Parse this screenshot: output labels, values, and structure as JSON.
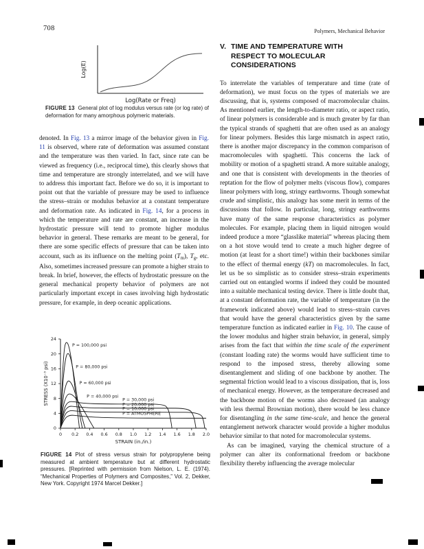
{
  "page": {
    "number": "708",
    "running_head": "Polymers, Mechanical Behavior"
  },
  "section": {
    "number": "V.",
    "title": "TIME AND TEMPERATURE WITH RESPECT TO MOLECULAR CONSIDERATIONS"
  },
  "figure13": {
    "caption_label": "FIGURE 13",
    "caption_text": "General plot of log modulus versus rate (or log rate) of deformation for many amorphous polymeric materials.",
    "ylabel": "Log(E)",
    "xlabel": "Log(Rate or Freq)"
  },
  "figure14": {
    "caption_label": "FIGURE 14",
    "caption_text": "Plot of stress versus strain for polypropylene being measured at ambient temperature but at different hydrostatic pressures. [Reprinted with permission from Nielson, L. E. (1974). “Mechanical Properties of Polymers and Composites,” Vol. 2, Dekker, New York. Copyright 1974 Marcel Dekker.]"
  },
  "left_column": {
    "paragraph": [
      {
        "s": "p",
        "t": "denoted. In "
      },
      {
        "s": "link",
        "t": "Fig. 13"
      },
      {
        "s": "p",
        "t": " a mirror image of the behavior given in "
      },
      {
        "s": "link",
        "t": "Fig. 11"
      },
      {
        "s": "p",
        "t": " is observed, where rate of deformation was assumed constant and the temperature was then varied. In fact, since rate can be viewed as frequency (i.e., reciprocal time), this clearly shows that time and temperature are strongly interrelated, and we will have to address this important fact. Before we do so, it is important to point out that the variable of pressure may be used to influence the stress–strain or modulus behavior at a constant temperature and deformation rate. As indicated in "
      },
      {
        "s": "link",
        "t": "Fig. 14"
      },
      {
        "s": "p",
        "t": ", for a process in which the temperature and rate are constant, an increase in the hydrostatic pressure will tend to promote higher modulus behavior in general. These remarks are meant to be general, for there are some specific effects of pressure that can be taken into account, such as its influence on the melting point ("
      },
      {
        "s": "i",
        "t": "T"
      },
      {
        "s": "sub",
        "t": "m"
      },
      {
        "s": "p",
        "t": "), "
      },
      {
        "s": "i",
        "t": "T"
      },
      {
        "s": "sub",
        "t": "g"
      },
      {
        "s": "p",
        "t": ", etc. Also, sometimes increased pressure can promote a higher strain to break. In brief, however, the effects of hydrostatic pressure on the general mechanical property behavior of polymers are not particularly important except in cases involving high hydrostatic pressure, for example, in deep oceanic applications."
      }
    ]
  },
  "right_column": {
    "paragraph1": [
      {
        "s": "p",
        "t": "To interrelate the variables of temperature and time (rate of deformation), we must focus on the types of materials we are discussing, that is, systems composed of macromolecular chains. As mentioned earlier, the length-to-diameter ratio, or aspect ratio, of linear polymers is considerable and is much greater by far than the typical strands of spaghetti that are often used as an analogy for linear polymers. Besides this large mismatch in aspect ratio, there is another major discrepancy in the common comparison of macromolecules with spaghetti. This concerns the lack of mobility or motion of a spaghetti strand. A more suitable analogy, and one that is consistent with developments in the theories of reptation for the flow of polymer melts (viscous flow), compares linear polymers with long, stringy earthworms. Though somewhat crude and simplistic, this analogy has some merit in terms of the discussions that follow. In particular, long, stringy earthworms have many of the same response characteristics as polymer molecules. For example, placing them in liquid nitrogen would indeed produce a more “glasslike material” whereas placing them on a hot stove would tend to create a much higher degree of motion (at least for a short time!) within their backbones similar to the effect of thermal energy ("
      },
      {
        "s": "i",
        "t": "kT"
      },
      {
        "s": "p",
        "t": ") on macromolecules. In fact, let us be so simplistic as to consider stress–strain experiments carried out on entangled worms if indeed they could be mounted into a suitable mechanical testing device. There is little doubt that, at a constant deformation rate, the variable of temperature (in the framework indicated above) would lead to stress–strain curves that would have the general characteristics given by the same temperature function as indicated earlier in "
      },
      {
        "s": "link",
        "t": "Fig. 10"
      },
      {
        "s": "p",
        "t": ". The cause of the lower modulus and higher strain behavior, in general, simply arises from the fact that "
      },
      {
        "s": "i",
        "t": "within the time scale of the experiment"
      },
      {
        "s": "p",
        "t": " (constant loading rate) the worms would have sufficient time to respond to the imposed stress, thereby allowing some disentanglement and sliding of one backbone by another. The segmental friction would lead to a viscous dissipation, that is, loss of mechanical energy. However, as the temperature decreased and the backbone motion of the worms also decreased (an analogy with less thermal Brownian motion), there would be less chance for disentangling "
      },
      {
        "s": "i",
        "t": "in the same time-scale"
      },
      {
        "s": "p",
        "t": ", and hence the general entanglement network character would provide a higher modulus behavior similar to that noted for macromolecular systems."
      }
    ],
    "paragraph2": [
      {
        "s": "p",
        "t": "As can be imagined, varying the chemical structure of a polymer can alter its conformational freedom or backbone flexibility thereby influencing the average molecular"
      }
    ]
  },
  "chart_data": [
    {
      "id": "figure-13",
      "type": "line",
      "title": "",
      "xlabel": "Log(Rate or Freq)",
      "ylabel": "Log(E)",
      "xlim": [
        0,
        10
      ],
      "ylim": [
        0,
        8
      ],
      "grid": false,
      "x": [
        0,
        0.6,
        1.4,
        2.2,
        3.0,
        3.8,
        4.6,
        5.4,
        6.2,
        7.0,
        7.8,
        8.6,
        9.4,
        10
      ],
      "y": [
        0.25,
        0.7,
        1.0,
        1.15,
        1.3,
        1.55,
        2.1,
        3.1,
        4.4,
        5.6,
        6.4,
        6.85,
        7.0,
        7.05
      ],
      "note": "qualitative sigmoid: log modulus increases with log rate of deformation"
    },
    {
      "id": "figure-14",
      "type": "line",
      "title": "",
      "xlabel": "STRAIN (in./in.)",
      "ylabel": "STRESS (X10⁻³ psi)",
      "xlim": [
        0,
        2.0
      ],
      "ylim": [
        0,
        24
      ],
      "grid": false,
      "x_ticks": [
        0,
        0.2,
        0.4,
        0.6,
        0.8,
        1.0,
        1.2,
        1.4,
        1.6,
        1.8,
        2.0
      ],
      "y_ticks": [
        0,
        4,
        8,
        12,
        16,
        20,
        24
      ],
      "series": [
        {
          "name": "P = 100,000 psi",
          "label_pos": [
            0.16,
            22.0
          ],
          "points": [
            [
              0,
              0
            ],
            [
              0.02,
              12
            ],
            [
              0.05,
              21.5
            ],
            [
              0.08,
              23.5
            ],
            [
              0.12,
              22
            ],
            [
              0.17,
              16
            ],
            [
              0.22,
              7
            ],
            [
              0.26,
              0
            ]
          ]
        },
        {
          "name": "P = 80,000 psi",
          "label_pos": [
            0.21,
            16.2
          ],
          "points": [
            [
              0,
              0
            ],
            [
              0.02,
              9
            ],
            [
              0.06,
              18
            ],
            [
              0.1,
              20.7
            ],
            [
              0.15,
              18.5
            ],
            [
              0.21,
              11
            ],
            [
              0.27,
              3
            ],
            [
              0.3,
              0
            ]
          ]
        },
        {
          "name": "P = 60,000 psi",
          "label_pos": [
            0.26,
            11.8
          ],
          "points": [
            [
              0,
              0
            ],
            [
              0.03,
              8
            ],
            [
              0.08,
              12.2
            ],
            [
              0.12,
              13
            ],
            [
              0.18,
              11
            ],
            [
              0.26,
              5.5
            ],
            [
              0.33,
              0.5
            ],
            [
              0.34,
              0
            ]
          ]
        },
        {
          "name": "P = 40,000 psi",
          "label_pos": [
            0.36,
            8.2
          ],
          "points": [
            [
              0,
              0
            ],
            [
              0.03,
              5.5
            ],
            [
              0.08,
              8.8
            ],
            [
              0.13,
              9.4
            ],
            [
              0.2,
              8.4
            ],
            [
              0.3,
              5.5
            ],
            [
              0.4,
              2
            ],
            [
              0.46,
              0
            ]
          ]
        },
        {
          "name": "P = 30,000 psi",
          "label_pos": [
            0.85,
            7.3
          ],
          "points": [
            [
              0,
              0
            ],
            [
              0.04,
              5
            ],
            [
              0.1,
              7.1
            ],
            [
              0.17,
              7.2
            ],
            [
              0.3,
              6.7
            ],
            [
              0.6,
              6.5
            ],
            [
              1.0,
              6.5
            ],
            [
              1.4,
              6.5
            ],
            [
              1.48,
              5.5
            ],
            [
              1.52,
              1.5
            ],
            [
              1.53,
              0
            ]
          ]
        },
        {
          "name": "P = 20,000 psi",
          "label_pos": [
            0.85,
            6.0
          ],
          "points": [
            [
              0,
              0
            ],
            [
              0.04,
              4.2
            ],
            [
              0.11,
              6.0
            ],
            [
              0.2,
              5.8
            ],
            [
              0.4,
              5.45
            ],
            [
              0.8,
              5.4
            ],
            [
              1.4,
              5.4
            ],
            [
              1.76,
              5.35
            ],
            [
              1.83,
              3.5
            ],
            [
              1.86,
              0
            ]
          ]
        },
        {
          "name": "P = 10,000 psi",
          "label_pos": [
            0.85,
            4.9
          ],
          "points": [
            [
              0,
              0
            ],
            [
              0.05,
              3.6
            ],
            [
              0.12,
              4.8
            ],
            [
              0.22,
              4.6
            ],
            [
              0.45,
              4.35
            ],
            [
              0.9,
              4.3
            ],
            [
              1.5,
              4.3
            ],
            [
              1.93,
              4.25
            ],
            [
              1.97,
              1.5
            ],
            [
              1.98,
              0
            ]
          ]
        },
        {
          "name": "P = ATMOSPHERE",
          "label_pos": [
            0.85,
            3.6
          ],
          "points": [
            [
              0,
              0
            ],
            [
              0.05,
              2.6
            ],
            [
              0.13,
              3.6
            ],
            [
              0.25,
              3.3
            ],
            [
              0.5,
              2.9
            ],
            [
              0.9,
              2.75
            ],
            [
              1.5,
              2.7
            ],
            [
              2.0,
              2.7
            ]
          ]
        }
      ]
    }
  ]
}
